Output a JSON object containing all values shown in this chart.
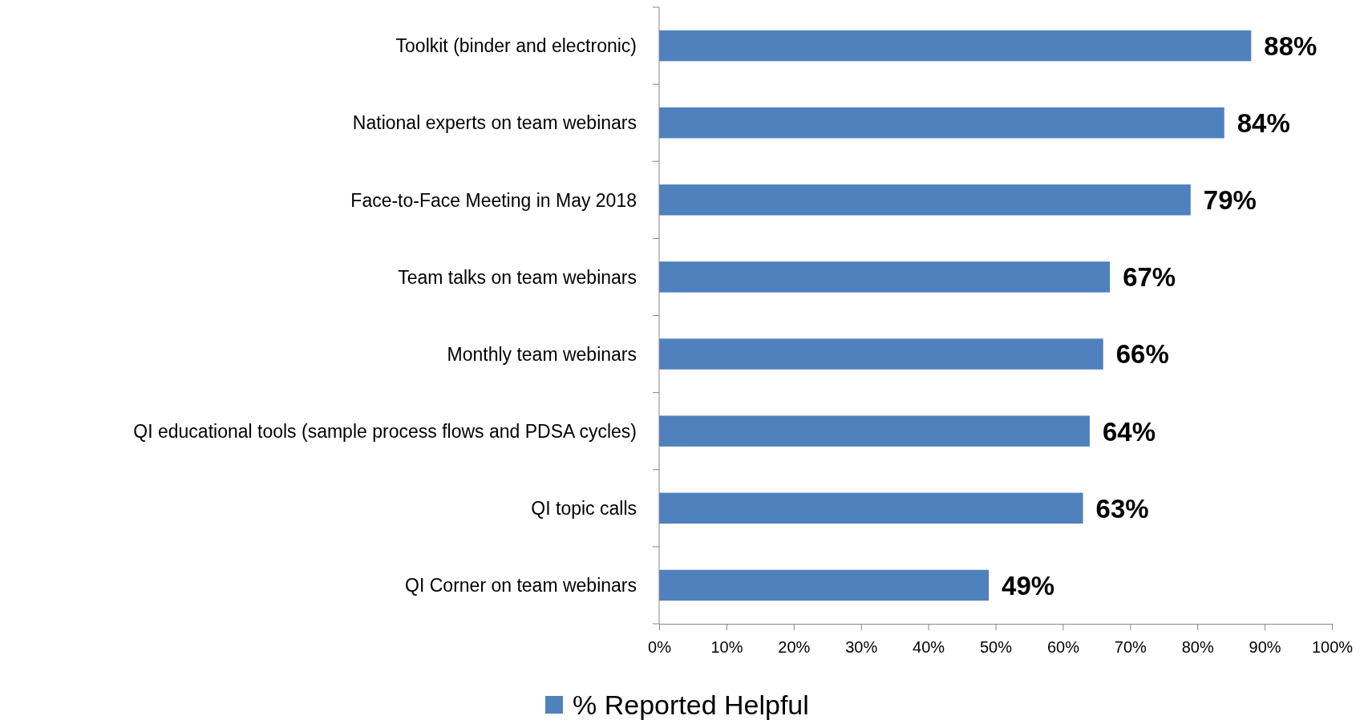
{
  "chart_data": {
    "type": "bar",
    "orientation": "horizontal",
    "categories": [
      "Toolkit (binder and electronic)",
      "National experts on team webinars",
      "Face-to-Face Meeting in May 2018",
      "Team talks on team webinars",
      "Monthly team webinars",
      "QI educational tools (sample process flows and PDSA cycles)",
      "QI topic calls",
      "QI Corner on team webinars"
    ],
    "series": [
      {
        "name": "% Reported Helpful",
        "color": "#4f81bd",
        "values": [
          88,
          84,
          79,
          67,
          66,
          64,
          63,
          49
        ],
        "value_labels": [
          "88%",
          "84%",
          "79%",
          "67%",
          "66%",
          "64%",
          "63%",
          "49%"
        ]
      }
    ],
    "xlim": [
      0,
      100
    ],
    "xticks": [
      {
        "value": 0,
        "label": "0%"
      },
      {
        "value": 10,
        "label": "10%"
      },
      {
        "value": 20,
        "label": "20%"
      },
      {
        "value": 30,
        "label": "30%"
      },
      {
        "value": 40,
        "label": "40%"
      },
      {
        "value": 50,
        "label": "50%"
      },
      {
        "value": 60,
        "label": "60%"
      },
      {
        "value": 70,
        "label": "70%"
      },
      {
        "value": 80,
        "label": "80%"
      },
      {
        "value": 90,
        "label": "90%"
      },
      {
        "value": 100,
        "label": "100%"
      }
    ],
    "grid": false,
    "legend": "bottom"
  }
}
